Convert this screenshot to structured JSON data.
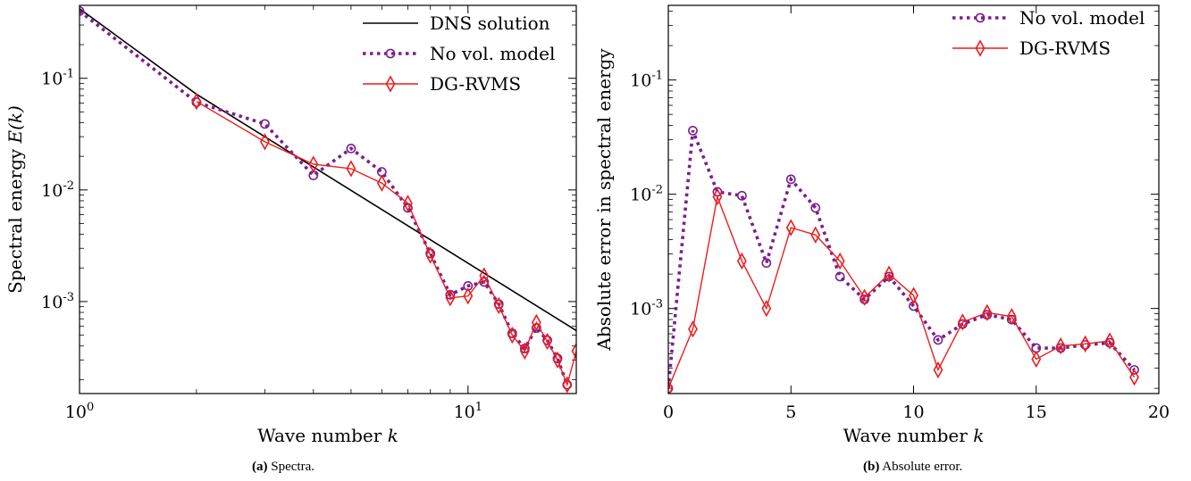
{
  "chart_data": [
    {
      "type": "line",
      "id": "spectra",
      "caption_tag": "(a)",
      "caption_text": "Spectra.",
      "xlabel": "Wave number k",
      "ylabel": "Spectral energy E(k)",
      "xscale": "log",
      "yscale": "log",
      "xlim": [
        1,
        19
      ],
      "ylim": [
        0.00015,
        0.45
      ],
      "x_ticks": [
        1,
        10
      ],
      "x_tick_labels": [
        "10^0",
        "10^1"
      ],
      "y_ticks": [
        0.001,
        0.01,
        0.1
      ],
      "y_tick_labels": [
        "10^-3",
        "10^-2",
        "10^-1"
      ],
      "legend_position": "top-right",
      "series": [
        {
          "name": "DNS solution",
          "style": "solid",
          "color": "#000000",
          "marker": "none",
          "x": [
            1,
            2,
            19
          ],
          "y": [
            0.42,
            0.072,
            0.00055
          ]
        },
        {
          "name": "No vol. model",
          "style": "dotted",
          "color": "#7a1f8c",
          "marker": "circle",
          "x": [
            1,
            2,
            3,
            4,
            5,
            6,
            7,
            8,
            9,
            10,
            11,
            12,
            13,
            14,
            15,
            16,
            17,
            18
          ],
          "y": [
            0.4,
            0.061,
            0.039,
            0.0135,
            0.0235,
            0.0145,
            0.0069,
            0.0027,
            0.00115,
            0.00138,
            0.0015,
            0.00095,
            0.00052,
            0.00038,
            0.00058,
            0.00045,
            0.00031,
            0.00018
          ]
        },
        {
          "name": "DG-RVMS",
          "style": "solid",
          "color": "#ee1c1c",
          "marker": "diamond",
          "x": [
            2,
            3,
            4,
            5,
            6,
            7,
            8,
            9,
            10,
            11,
            12,
            13,
            14,
            15,
            16,
            17,
            18,
            19
          ],
          "y": [
            0.062,
            0.027,
            0.017,
            0.0155,
            0.0115,
            0.0076,
            0.0026,
            0.00108,
            0.00112,
            0.0017,
            0.00092,
            0.0005,
            0.00036,
            0.00065,
            0.00044,
            0.0003,
            0.00018,
            0.00036
          ]
        }
      ]
    },
    {
      "type": "line",
      "id": "abs_error",
      "caption_tag": "(b)",
      "caption_text": "Absolute error.",
      "xlabel": "Wave number k",
      "ylabel": "Absolute error in spectral energy",
      "xscale": "linear",
      "yscale": "log",
      "xlim": [
        0,
        20
      ],
      "ylim": [
        0.00018,
        0.45
      ],
      "x_ticks": [
        0,
        5,
        10,
        15,
        20
      ],
      "x_tick_labels": [
        "0",
        "5",
        "10",
        "15",
        "20"
      ],
      "y_ticks": [
        0.001,
        0.01,
        0.1
      ],
      "y_tick_labels": [
        "10^-3",
        "10^-2",
        "10^-1"
      ],
      "legend_position": "top-right",
      "series": [
        {
          "name": "No vol. model",
          "style": "dotted",
          "color": "#7a1f8c",
          "marker": "circle",
          "x": [
            0,
            1,
            2,
            3,
            4,
            5,
            6,
            7,
            8,
            9,
            10,
            11,
            12,
            13,
            14,
            15,
            16,
            17,
            18,
            19
          ],
          "y": [
            0.0002,
            0.036,
            0.0105,
            0.0097,
            0.0025,
            0.0135,
            0.0076,
            0.0019,
            0.0012,
            0.0019,
            0.00105,
            0.00053,
            0.00073,
            0.00088,
            0.0008,
            0.00045,
            0.00045,
            0.00048,
            0.0005,
            0.00029
          ]
        },
        {
          "name": "DG-RVMS",
          "style": "solid",
          "color": "#ee1c1c",
          "marker": "diamond",
          "x": [
            0,
            1,
            2,
            3,
            4,
            5,
            6,
            7,
            8,
            9,
            10,
            11,
            12,
            13,
            14,
            15,
            16,
            17,
            18,
            19
          ],
          "y": [
            0.0002,
            0.00066,
            0.0095,
            0.0026,
            0.001,
            0.0051,
            0.0044,
            0.0026,
            0.00125,
            0.002,
            0.0013,
            0.00029,
            0.00076,
            0.00092,
            0.00085,
            0.00036,
            0.00047,
            0.00049,
            0.00052,
            0.00025
          ]
        }
      ]
    }
  ]
}
